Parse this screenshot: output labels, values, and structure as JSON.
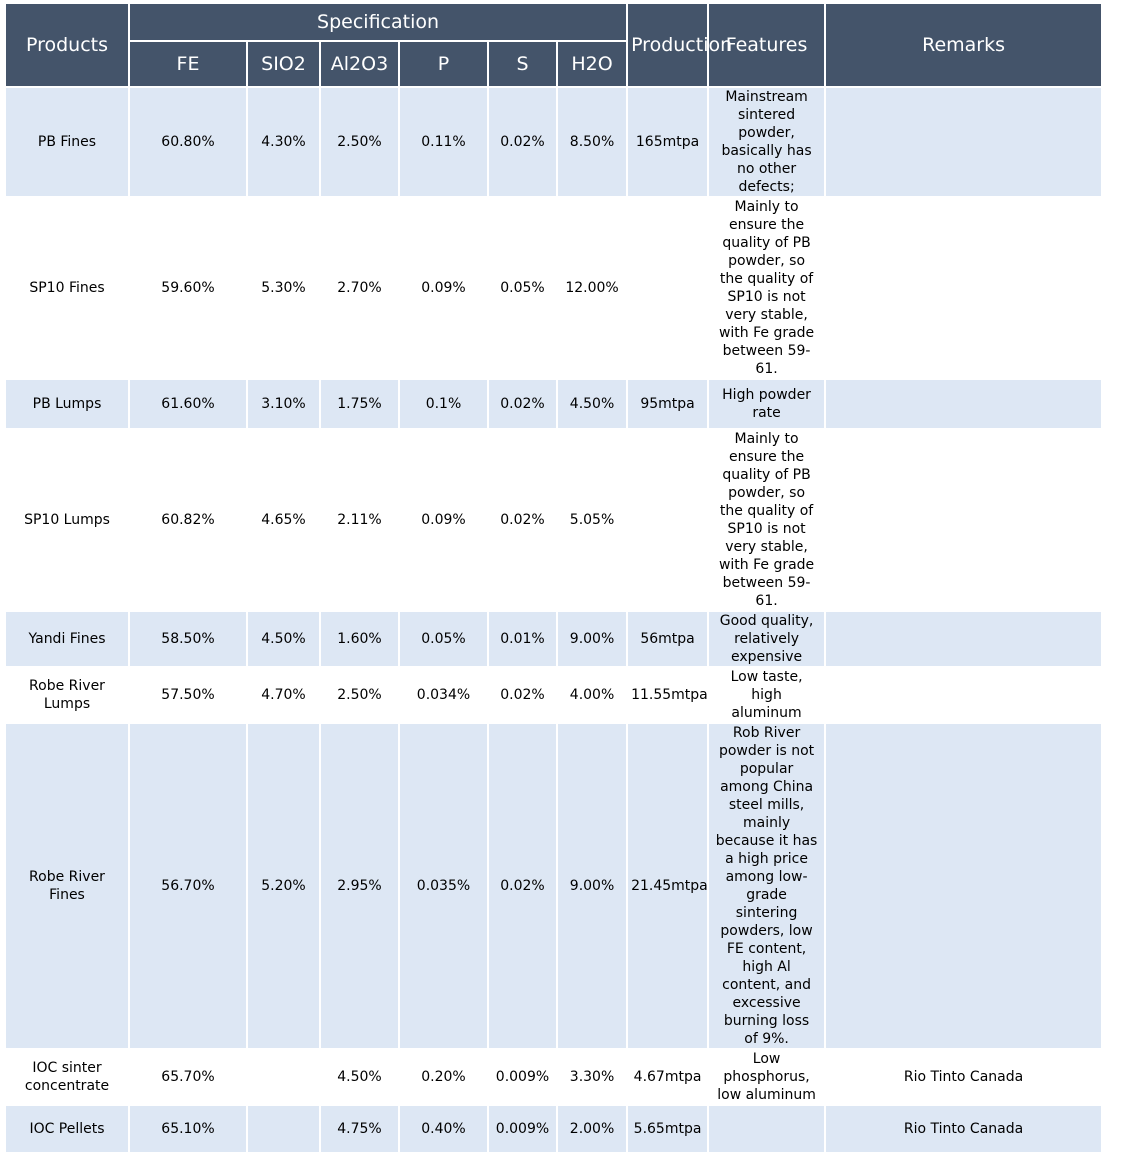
{
  "table": {
    "headers": {
      "products": "Products",
      "specification": "Specification",
      "fe": "FE",
      "sio2": "SIO2",
      "al2o3": "Al2O3",
      "p": "P",
      "s": "S",
      "h2o": "H2O",
      "production": "Production",
      "features": "Features",
      "remarks": "Remarks"
    },
    "rows": [
      {
        "product": "PB Fines",
        "fe": "60.80%",
        "sio2": "4.30%",
        "al2o3": "2.50%",
        "p": "0.11%",
        "s": "0.02%",
        "h2o": "8.50%",
        "production": "165mtpa",
        "features": "Mainstream sintered powder, basically has no other defects;",
        "remarks": ""
      },
      {
        "product": "SP10 Fines",
        "fe": "59.60%",
        "sio2": "5.30%",
        "al2o3": "2.70%",
        "p": "0.09%",
        "s": "0.05%",
        "h2o": "12.00%",
        "production": "",
        "features": "Mainly to ensure the quality of PB powder, so the quality of SP10 is not very stable, with Fe grade between 59-61.",
        "remarks": ""
      },
      {
        "product": "PB Lumps",
        "fe": "61.60%",
        "sio2": "3.10%",
        "al2o3": "1.75%",
        "p": "0.1%",
        "s": "0.02%",
        "h2o": "4.50%",
        "production": "95mtpa",
        "features": "High powder rate",
        "remarks": ""
      },
      {
        "product": "SP10 Lumps",
        "fe": "60.82%",
        "sio2": "4.65%",
        "al2o3": "2.11%",
        "p": "0.09%",
        "s": "0.02%",
        "h2o": "5.05%",
        "production": "",
        "features": "Mainly to ensure the quality of PB powder, so the quality of SP10 is not very stable, with Fe grade between 59-61.",
        "remarks": ""
      },
      {
        "product": "Yandi Fines",
        "fe": "58.50%",
        "sio2": "4.50%",
        "al2o3": "1.60%",
        "p": "0.05%",
        "s": "0.01%",
        "h2o": "9.00%",
        "production": "56mtpa",
        "features": "Good quality, relatively expensive",
        "remarks": ""
      },
      {
        "product": "Robe River Lumps",
        "fe": "57.50%",
        "sio2": "4.70%",
        "al2o3": "2.50%",
        "p": "0.034%",
        "s": "0.02%",
        "h2o": "4.00%",
        "production": "11.55mtpa",
        "features": "Low taste, high aluminum",
        "remarks": ""
      },
      {
        "product": "Robe River Fines",
        "fe": "56.70%",
        "sio2": "5.20%",
        "al2o3": "2.95%",
        "p": "0.035%",
        "s": "0.02%",
        "h2o": "9.00%",
        "production": "21.45mtpa",
        "features": "Rob River powder is not popular among China steel mills, mainly because it has a high price among low-grade sintering powders, low FE content, high Al content, and excessive burning loss of 9%.",
        "remarks": ""
      },
      {
        "product": "IOC sinter concentrate",
        "fe": "65.70%",
        "sio2": "",
        "al2o3": "4.50%",
        "p": "0.20%",
        "s": "0.009%",
        "h2o": "3.30%",
        "production": "4.67mtpa",
        "features": "Low phosphorus, low aluminum",
        "remarks": "Rio Tinto Canada"
      },
      {
        "product": "IOC Pellets",
        "fe": "65.10%",
        "sio2": "",
        "al2o3": "4.75%",
        "p": "0.40%",
        "s": "0.009%",
        "h2o": "2.00%",
        "production": "5.65mtpa",
        "features": "",
        "remarks": "Rio Tinto Canada"
      }
    ]
  }
}
